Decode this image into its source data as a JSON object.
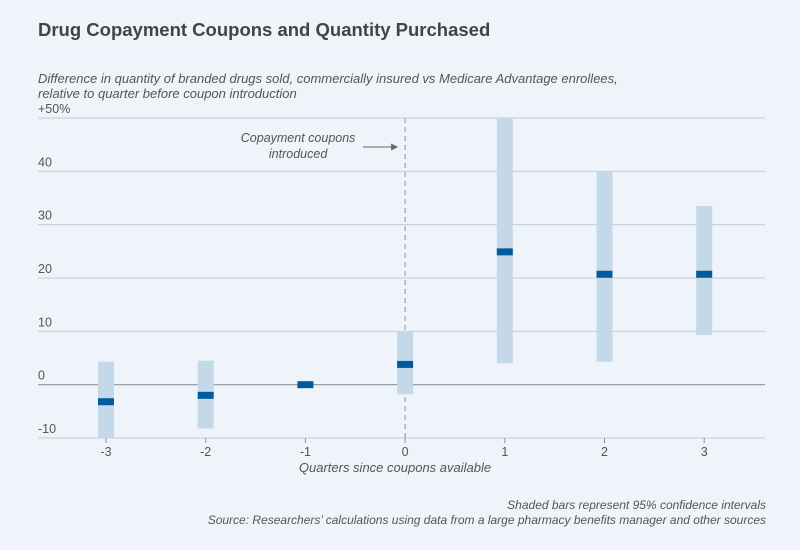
{
  "title": "Drug Copayment Coupons and Quantity Purchased",
  "subtitle": "Difference in quantity of branded drugs sold, commercially insured vs Medicare Advantage enrollees, relative to quarter before coupon introduction",
  "notes": {
    "ci": "Shaded bars represent 95% confidence intervals",
    "source": "Source: Researchers’ calculations using data from a large pharmacy benefits manager and other sources"
  },
  "colors": {
    "ci_bar": "#c3d9ea",
    "point": "#005a9c",
    "grid": "#c5ccd4",
    "background": "#eef4f9"
  },
  "chart_data": {
    "type": "error_bar",
    "title": "Drug Copayment Coupons and Quantity Purchased",
    "xlabel": "Quarters since coupons available",
    "ylabel": "",
    "x": [
      -3,
      -2,
      -1,
      0,
      1,
      2,
      3
    ],
    "x_tick_labels": [
      "-3",
      "-2",
      "-1",
      "0",
      "1",
      "2",
      "3"
    ],
    "y_ticks": [
      -10,
      0,
      10,
      20,
      30,
      40,
      50
    ],
    "y_tick_labels": [
      "-10",
      "0",
      "10",
      "20",
      "30",
      "40",
      "+50%"
    ],
    "ylim": [
      -10,
      50
    ],
    "series": [
      {
        "values": [
          -3.2,
          -2,
          0,
          3.8,
          24.9,
          20.7,
          20.7
        ],
        "ci_low": [
          -10,
          -8.2,
          null,
          -1.8,
          4,
          4.3,
          9.3
        ],
        "ci_high": [
          4.3,
          4.5,
          null,
          10,
          50,
          40,
          33.5
        ]
      }
    ],
    "annotation": {
      "text_lines": [
        "Copayment coupons",
        "introduced"
      ],
      "x": 0
    },
    "grid": true
  }
}
